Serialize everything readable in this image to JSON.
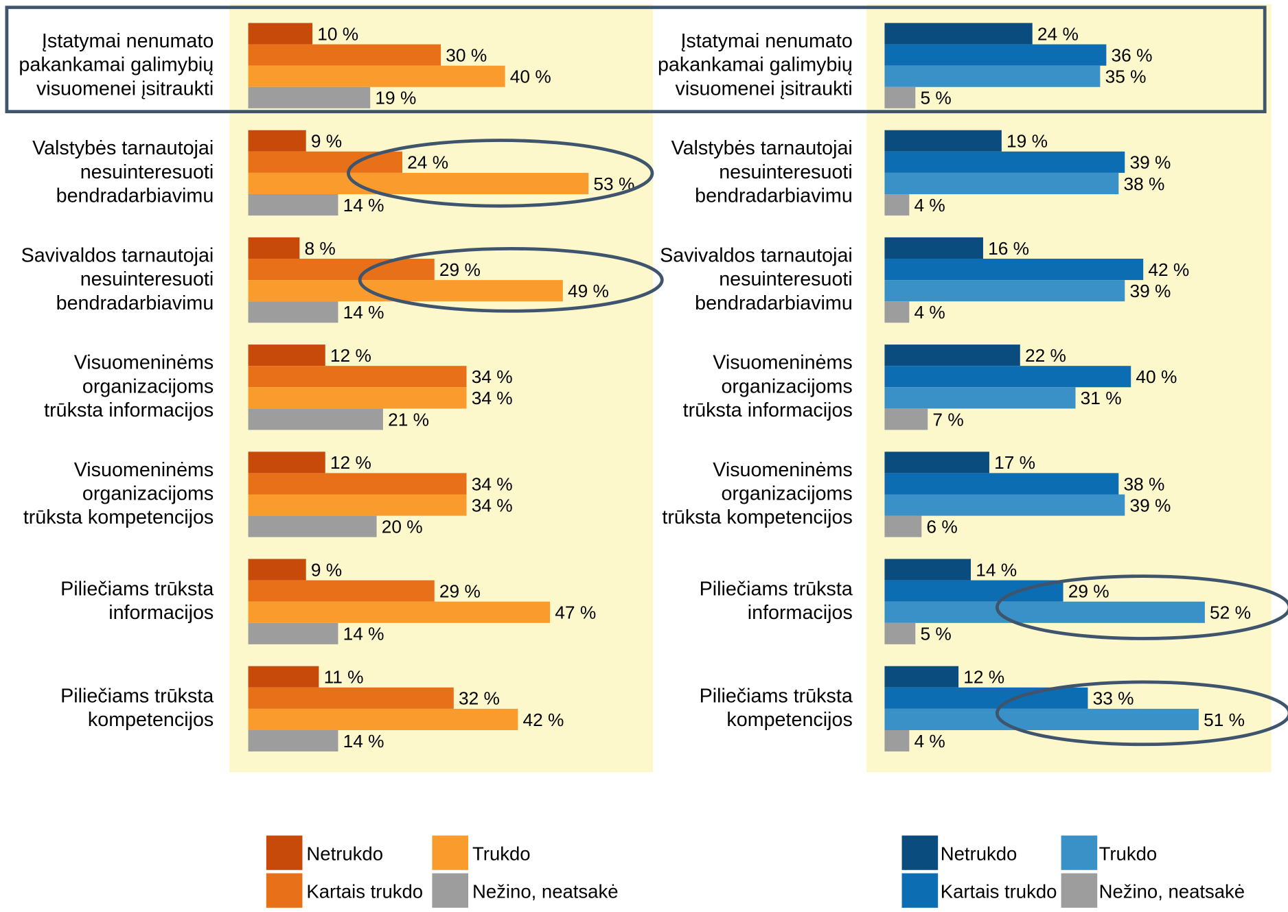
{
  "chart_data": [
    {
      "type": "bar",
      "categories": [
        "Įstatymai nenumato\npakankamai galimybių\nvisuomenei įsitraukti",
        "Valstybės tarnautojai\nnesuinteresuoti\nbendradarbiavimu",
        "Savivaldos tarnautojai\nnesuinteresuoti\nbendradarbiavimu",
        "Visuomeninėms\norganizacijoms\ntrūksta informacijos",
        "Visuomeninėms\norganizacijoms\ntrūksta kompetencijos",
        "Piliečiams trūksta\ninformacijos",
        "Piliečiams trūksta\nkompetencijos"
      ],
      "series": [
        {
          "name": "Netrukdo",
          "color": "#c84a0b",
          "values": [
            10,
            9,
            8,
            12,
            12,
            9,
            11
          ],
          "value_labels": [
            "10 %",
            "9 %",
            "8 %",
            "12 %",
            "12 %",
            "9 %",
            "11 %"
          ]
        },
        {
          "name": "Kartais trukdo",
          "color": "#e87019",
          "values": [
            30,
            24,
            29,
            34,
            34,
            29,
            32
          ],
          "value_labels": [
            "30 %",
            "24 %",
            "29 %",
            "34 %",
            "34 %",
            "29 %",
            "32 %"
          ]
        },
        {
          "name": "Trukdo",
          "color": "#fa9c2d",
          "values": [
            40,
            53,
            49,
            34,
            34,
            47,
            42
          ],
          "value_labels": [
            "40 %",
            "53 %",
            "49 %",
            "34 %",
            "34 %",
            "47 %",
            "42 %"
          ]
        },
        {
          "name": "Nežino, neatsakė",
          "color": "#9d9d9d",
          "values": [
            19,
            14,
            14,
            21,
            20,
            14,
            14
          ],
          "value_labels": [
            "19 %",
            "14 %",
            "14 %",
            "21 %",
            "20 %",
            "14 %",
            "14 %"
          ]
        }
      ]
    },
    {
      "type": "bar",
      "categories": [
        "Įstatymai nenumato\npakankamai galimybių\nvisuomenei įsitraukti",
        "Valstybės tarnautojai\nnesuinteresuoti\nbendradarbiavimu",
        "Savivaldos tarnautojai\nnesuinteresuoti\nbendradarbiavimu",
        "Visuomeninėms\norganizacijoms\ntrūksta informacijos",
        "Visuomeninėms\norganizacijoms\ntrūksta kompetencijos",
        "Piliečiams trūksta\ninformacijos",
        "Piliečiams trūksta\nkompetencijos"
      ],
      "series": [
        {
          "name": "Netrukdo",
          "color": "#0b4c7e",
          "values": [
            24,
            19,
            16,
            22,
            17,
            14,
            12
          ],
          "value_labels": [
            "24 %",
            "19 %",
            "16 %",
            "22 %",
            "17 %",
            "14 %",
            "12 %"
          ]
        },
        {
          "name": "Kartais trukdo",
          "color": "#0d6db3",
          "values": [
            36,
            39,
            42,
            40,
            38,
            29,
            33
          ],
          "value_labels": [
            "36 %",
            "39 %",
            "42 %",
            "40 %",
            "38 %",
            "29 %",
            "33 %"
          ]
        },
        {
          "name": "Trukdo",
          "color": "#3a91c7",
          "values": [
            35,
            38,
            39,
            31,
            39,
            52,
            51
          ],
          "value_labels": [
            "35 %",
            "38 %",
            "39 %",
            "31 %",
            "39 %",
            "52 %",
            "51 %"
          ]
        },
        {
          "name": "Nežino, neatsakė",
          "color": "#9d9d9d",
          "values": [
            5,
            4,
            4,
            7,
            6,
            5,
            4
          ],
          "value_labels": [
            "5 %",
            "4 %",
            "4 %",
            "7 %",
            "6 %",
            "5 %",
            "4 %"
          ]
        }
      ]
    }
  ]
}
